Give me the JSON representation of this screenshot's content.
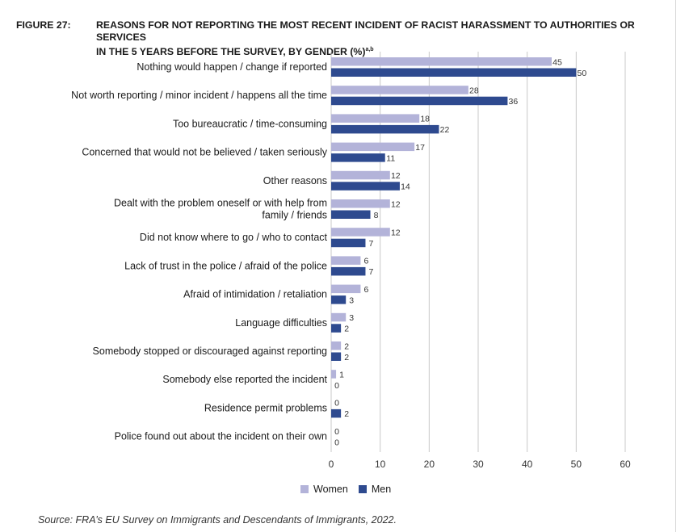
{
  "figure": {
    "number": "FIGURE 27:",
    "title_line1": "REASONS FOR NOT REPORTING THE MOST RECENT INCIDENT OF RACIST HARASSMENT TO AUTHORITIES OR SERVICES",
    "title_line2": "IN THE 5 YEARS BEFORE THE SURVEY, BY GENDER (%)",
    "title_superscript": "a,b"
  },
  "source": "Source:   FRA’s EU Survey on Immigrants and Descendants of Immigrants, 2022.",
  "colors": {
    "women": "#b3b3d9",
    "men": "#2e4a8f",
    "grid": "#c8c8c8"
  },
  "chart_data": {
    "type": "bar",
    "orientation": "horizontal",
    "categories": [
      [
        "Nothing would happen / change if reported"
      ],
      [
        "Not worth reporting / minor incident / happens all the time"
      ],
      [
        "Too bureaucratic / time-consuming"
      ],
      [
        "Concerned that would not be believed / taken seriously"
      ],
      [
        "Other reasons"
      ],
      [
        "Dealt with the problem oneself or with help from",
        "family / friends"
      ],
      [
        "Did not know where to go / who to contact"
      ],
      [
        "Lack of trust in the police / afraid of the police"
      ],
      [
        "Afraid of intimidation / retaliation"
      ],
      [
        "Language difficulties"
      ],
      [
        "Somebody stopped or discouraged against reporting"
      ],
      [
        "Somebody else reported the incident"
      ],
      [
        "Residence permit problems"
      ],
      [
        "Police found out about the incident on their own"
      ]
    ],
    "series": [
      {
        "name": "Women",
        "values": [
          45,
          28,
          18,
          17,
          12,
          12,
          12,
          6,
          6,
          3,
          2,
          1,
          0,
          0
        ]
      },
      {
        "name": "Men",
        "values": [
          50,
          36,
          22,
          11,
          14,
          8,
          7,
          7,
          3,
          2,
          2,
          0,
          2,
          0
        ]
      }
    ],
    "xlim": [
      0,
      60
    ],
    "xticks": [
      0,
      10,
      20,
      30,
      40,
      50,
      60
    ],
    "grid": true,
    "legend_position": "bottom-center"
  }
}
